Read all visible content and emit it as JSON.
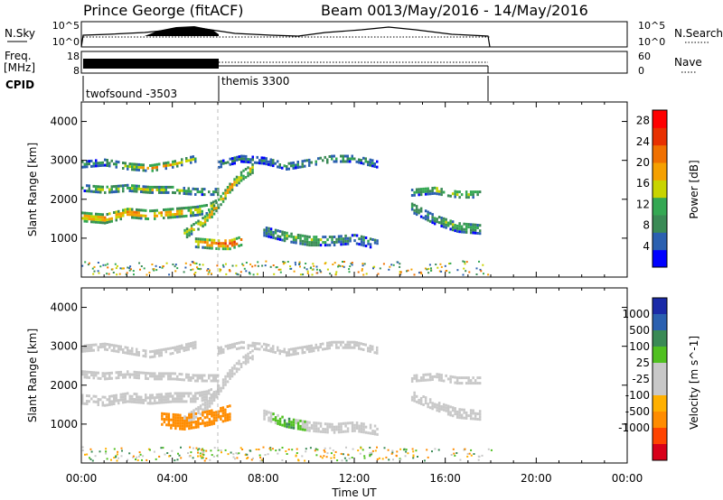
{
  "header": {
    "site": "Prince George (fitACF)",
    "beam": "Beam 00",
    "dates": "13/May/2016 - 14/May/2016"
  },
  "strip_panels": {
    "nsky": {
      "label": "N.Sky",
      "ticks": [
        "10^5",
        "10^0"
      ]
    },
    "nsearch": {
      "label": "N.Search",
      "ticks": [
        "10^5",
        "10^0"
      ]
    },
    "freq": {
      "label_line1": "Freq.",
      "label_line2": "[MHz]",
      "ticks": [
        "18",
        "8"
      ]
    },
    "nave": {
      "label": "Nave",
      "ticks": [
        "60",
        "0"
      ]
    },
    "cpid": {
      "label": "CPID",
      "segments": [
        {
          "name": "twofsound -3503",
          "start_hour": 0,
          "end_hour": 6
        },
        {
          "name": "themis 3300",
          "start_hour": 6,
          "end_hour": 18
        }
      ]
    }
  },
  "colors": {
    "power_scale": [
      "#0000ff",
      "#2b60b0",
      "#3a8a55",
      "#34a853",
      "#c8d400",
      "#f5a000",
      "#f07000",
      "#e83000",
      "#ff0000"
    ],
    "velocity_scale": [
      "#d8001a",
      "#ff4400",
      "#ff8c00",
      "#ffb000",
      "#c8c8c8",
      "#c8c8c8",
      "#50c020",
      "#3a8a55",
      "#2a60b0",
      "#1a2aa8"
    ]
  },
  "chart_data": [
    {
      "type": "heatmap",
      "panel": "power",
      "ylabel": "Slant Range [km]",
      "xlabel": "",
      "ylim": [
        0,
        4500
      ],
      "yticks": [
        "1000",
        "2000",
        "3000",
        "4000"
      ],
      "xlim": [
        0,
        24
      ],
      "xticks": [
        "00:00",
        "04:00",
        "08:00",
        "12:00",
        "16:00",
        "20:00",
        "00:00"
      ],
      "colorbar": {
        "label": "Power [dB]",
        "ticks": [
          "4",
          "8",
          "12",
          "16",
          "20",
          "24",
          "28"
        ],
        "range": [
          0,
          30
        ]
      },
      "echo_bands": [
        {
          "t": [
            0.0,
            1.0,
            2.0,
            3.0,
            4.0,
            5.0,
            5.5,
            6.0
          ],
          "r": [
            1550,
            1500,
            1650,
            1600,
            1650,
            1700,
            1750,
            1900
          ],
          "width_km": 220,
          "power": [
            20,
            22,
            22,
            20,
            20,
            18,
            16,
            16
          ]
        },
        {
          "t": [
            0.0,
            1.0,
            2.0,
            3.0,
            4.0,
            5.0,
            6.0
          ],
          "r": [
            2300,
            2250,
            2300,
            2250,
            2250,
            2200,
            2200
          ],
          "width_km": 160,
          "power": [
            12,
            14,
            14,
            16,
            14,
            12,
            10
          ]
        },
        {
          "t": [
            0.0,
            1.0,
            2.0,
            3.0,
            4.0,
            5.0
          ],
          "r": [
            2900,
            2950,
            2850,
            2800,
            2900,
            3050
          ],
          "width_km": 150,
          "power": [
            8,
            10,
            14,
            20,
            18,
            12
          ]
        },
        {
          "t": [
            4.5,
            5.5,
            6.0,
            6.5,
            7.0,
            7.5
          ],
          "r": [
            1100,
            1500,
            1900,
            2300,
            2600,
            2800
          ],
          "width_km": 220,
          "power": [
            16,
            20,
            22,
            22,
            18,
            16
          ]
        },
        {
          "t": [
            6.0,
            7.0,
            8.0,
            9.0,
            10.0,
            11.0,
            12.0,
            13.0
          ],
          "r": [
            2900,
            3050,
            3000,
            2850,
            2950,
            3050,
            3050,
            2900
          ],
          "width_km": 160,
          "power": [
            8,
            8,
            8,
            8,
            10,
            12,
            10,
            8
          ]
        },
        {
          "t": [
            5.0,
            6.0,
            6.5,
            7.0
          ],
          "r": [
            900,
            850,
            850,
            950
          ],
          "width_km": 250,
          "power": [
            16,
            24,
            26,
            24
          ]
        },
        {
          "t": [
            8.0,
            9.0,
            10.0,
            11.0,
            12.0,
            13.0
          ],
          "r": [
            1200,
            1050,
            950,
            950,
            1000,
            850
          ],
          "width_km": 260,
          "power": [
            8,
            12,
            14,
            10,
            8,
            8
          ]
        },
        {
          "t": [
            14.5,
            15.5,
            16.5,
            17.5
          ],
          "r": [
            2200,
            2250,
            2150,
            2150
          ],
          "width_km": 200,
          "power": [
            10,
            14,
            16,
            12
          ]
        },
        {
          "t": [
            14.5,
            15.5,
            16.5,
            17.5
          ],
          "r": [
            1800,
            1500,
            1300,
            1250
          ],
          "width_km": 260,
          "power": [
            10,
            10,
            12,
            10
          ]
        }
      ]
    },
    {
      "type": "heatmap",
      "panel": "velocity",
      "ylabel": "Slant Range [km]",
      "xlabel": "Time UT",
      "ylim": [
        0,
        4500
      ],
      "yticks": [
        "1000",
        "2000",
        "3000",
        "4000"
      ],
      "xlim": [
        0,
        24
      ],
      "xticks": [
        "00:00",
        "04:00",
        "08:00",
        "12:00",
        "16:00",
        "20:00",
        "00:00"
      ],
      "colorbar": {
        "label": "Velocity [m s^-1]",
        "ticks": [
          "1000",
          "500",
          "100",
          "25",
          "-25",
          "-100",
          "-500",
          "-1000"
        ]
      },
      "echo_bands": [
        {
          "t": [
            0.0,
            1.0,
            2.0,
            3.0,
            4.0,
            5.0,
            5.5,
            6.0
          ],
          "r": [
            1650,
            1600,
            1700,
            1650,
            1700,
            1700,
            1750,
            1900
          ],
          "width_km": 240,
          "velocity": [
            0,
            0,
            0,
            0,
            0,
            0,
            0,
            0
          ]
        },
        {
          "t": [
            0.0,
            1.0,
            2.0,
            3.0,
            4.0,
            5.0,
            6.0
          ],
          "r": [
            2300,
            2250,
            2300,
            2250,
            2250,
            2200,
            2200
          ],
          "width_km": 180,
          "velocity": [
            0,
            0,
            0,
            0,
            0,
            0,
            0
          ]
        },
        {
          "t": [
            0.0,
            1.0,
            2.0,
            3.0,
            4.0,
            5.0
          ],
          "r": [
            2950,
            3000,
            2900,
            2800,
            2900,
            3050
          ],
          "width_km": 160,
          "velocity": [
            0,
            0,
            0,
            0,
            0,
            0
          ]
        },
        {
          "t": [
            4.5,
            5.5,
            6.0,
            6.5,
            7.0,
            7.5
          ],
          "r": [
            1100,
            1500,
            1900,
            2300,
            2600,
            2800
          ],
          "width_km": 240,
          "velocity": [
            0,
            0,
            0,
            0,
            0,
            0
          ]
        },
        {
          "t": [
            6.0,
            7.0,
            8.0,
            9.0,
            10.0,
            11.0,
            12.0,
            13.0
          ],
          "r": [
            2900,
            3050,
            3000,
            2850,
            2950,
            3050,
            3050,
            2900
          ],
          "width_km": 170,
          "velocity": [
            0,
            0,
            0,
            0,
            0,
            0,
            0,
            0
          ]
        },
        {
          "t": [
            3.5,
            4.5,
            5.5,
            6.5
          ],
          "r": [
            1100,
            1050,
            1150,
            1300
          ],
          "width_km": 360,
          "velocity": [
            -150,
            -150,
            -150,
            -120
          ]
        },
        {
          "t": [
            8.0,
            9.0,
            10.0,
            11.0,
            12.0,
            13.0
          ],
          "r": [
            1250,
            1050,
            950,
            900,
            950,
            850
          ],
          "width_km": 240,
          "velocity": [
            0,
            60,
            0,
            0,
            0,
            0
          ]
        },
        {
          "t": [
            14.5,
            15.5,
            16.5,
            17.5
          ],
          "r": [
            2200,
            2250,
            2150,
            2150
          ],
          "width_km": 200,
          "velocity": [
            0,
            0,
            0,
            0
          ]
        },
        {
          "t": [
            14.5,
            15.5,
            16.5,
            17.5
          ],
          "r": [
            1750,
            1500,
            1300,
            1250
          ],
          "width_km": 260,
          "velocity": [
            0,
            0,
            0,
            0
          ]
        }
      ]
    }
  ]
}
